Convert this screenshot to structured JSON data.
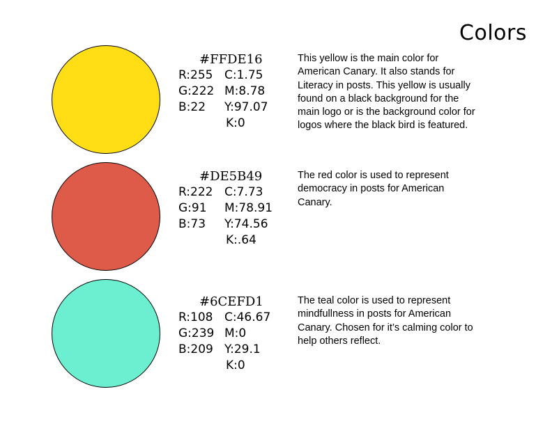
{
  "title": "Colors",
  "swatches": [
    {
      "hex": "#FFDE16",
      "color": "#FFDE16",
      "r": "R:255",
      "c": "C:1.75",
      "g": "G:222",
      "m": "M:8.78",
      "b": "B:22",
      "y": "Y:97.07",
      "k": "K:0",
      "description": "This yellow is the main color for American Canary. It also stands for Literacy in posts. This yellow is usually found on a black background for the main logo or is the background color for logos where the black bird is featured."
    },
    {
      "hex": "#DE5B49",
      "color": "#DE5B49",
      "r": "R:222",
      "c": "C:7.73",
      "g": "G:91",
      "m": "M:78.91",
      "b": "B:73",
      "y": "Y:74.56",
      "k": "K:.64",
      "description": "The red color is used to represent democracy in posts for American Canary."
    },
    {
      "hex": "#6CEFD1",
      "color": "#6CEFD1",
      "r": "R:108",
      "c": "C:46.67",
      "g": "G:239",
      "m": "M:0",
      "b": "B:209",
      "y": "Y:29.1",
      "k": "K:0",
      "description": "The teal color is used to represent mindfullness in posts for American Canary. Chosen for it’s calming color to help others reflect."
    }
  ]
}
